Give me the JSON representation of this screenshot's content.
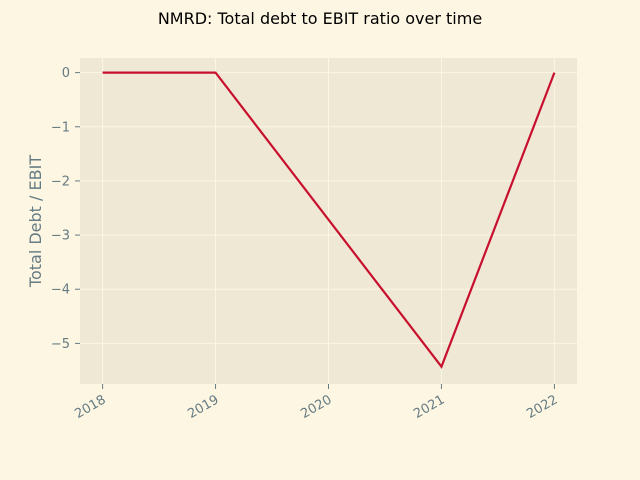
{
  "chart_data": {
    "type": "line",
    "title": "NMRD: Total debt to EBIT ratio over time",
    "xlabel": "",
    "ylabel": "Total Debt / EBIT",
    "x_tick_labels": [
      "2018",
      "2019",
      "2020",
      "2021",
      "2022"
    ],
    "y_tick_labels": [
      "0",
      "−1",
      "−2",
      "−3",
      "−4",
      "−5"
    ],
    "y_ticks": [
      0,
      -1,
      -2,
      -3,
      -4,
      -5
    ],
    "ylim": [
      -5.75,
      0.27
    ],
    "xlim": [
      2017.8,
      2022.2
    ],
    "grid": true,
    "series": [
      {
        "x": [
          2018,
          2019,
          2021,
          2022
        ],
        "values": [
          0,
          0,
          -5.43,
          0
        ],
        "color": "#c8102e"
      }
    ]
  },
  "colors": {
    "background": "#fdf6e3",
    "plot_background": "#eee8d5",
    "grid": "#fdf6e3",
    "text": "#657b83"
  }
}
